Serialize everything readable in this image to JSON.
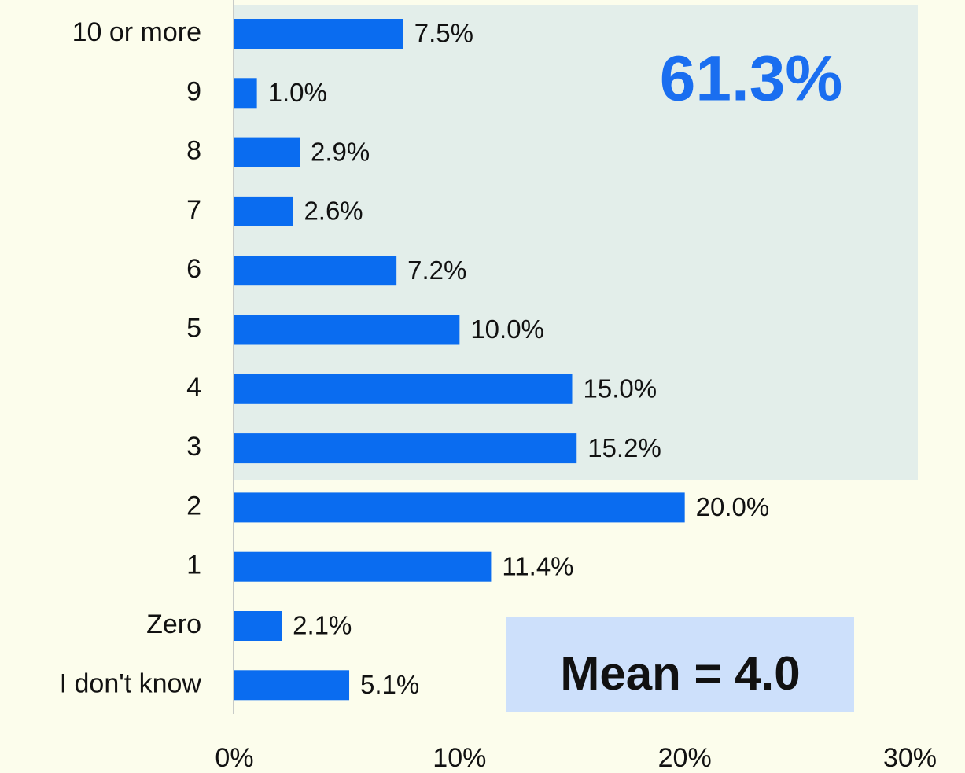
{
  "chart_data": {
    "type": "bar",
    "orientation": "horizontal",
    "categories": [
      "10 or more",
      "9",
      "8",
      "7",
      "6",
      "5",
      "4",
      "3",
      "2",
      "1",
      "Zero",
      "I don't know"
    ],
    "values": [
      7.5,
      1.0,
      2.9,
      2.6,
      7.2,
      10.0,
      15.0,
      15.2,
      20.0,
      11.4,
      2.1,
      5.1
    ],
    "value_labels": [
      "7.5%",
      "1.0%",
      "2.9%",
      "2.6%",
      "7.2%",
      "10.0%",
      "15.0%",
      "15.2%",
      "20.0%",
      "11.4%",
      "2.1%",
      "5.1%"
    ],
    "color": "#0a6cf0",
    "xlim": [
      0,
      30
    ],
    "xticks": [
      {
        "value": 0,
        "label": "0%"
      },
      {
        "value": 10,
        "label": "10%"
      },
      {
        "value": 20,
        "label": "20%"
      },
      {
        "value": 30,
        "label": "30%"
      }
    ],
    "grid": false,
    "annotations": [
      "61.3%",
      "Mean = 4.0"
    ]
  }
}
